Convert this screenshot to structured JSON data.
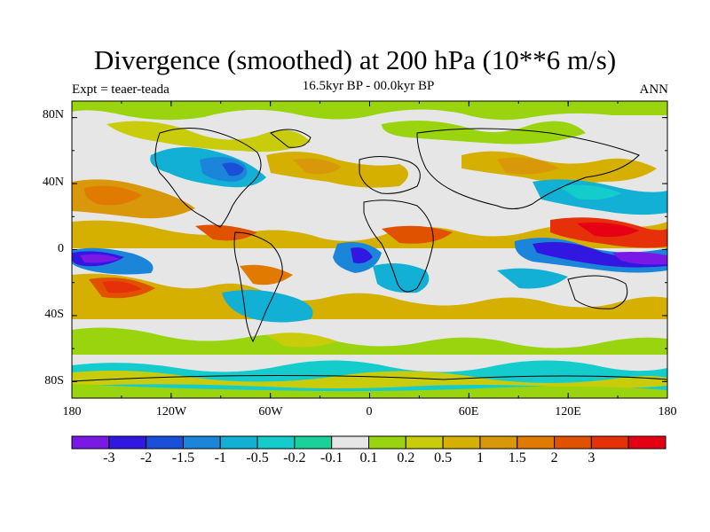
{
  "title": "Divergence (smoothed) at 200 hPa (10**6 m/s)",
  "subtitle": "16.5kyr BP - 00.0kyr BP",
  "left_label": "Expt = teaer-teada",
  "right_label": "ANN",
  "lat_ticks": [
    "80N",
    "40N",
    "0",
    "40S",
    "80S"
  ],
  "lon_ticks": [
    "180",
    "120W",
    "60W",
    "0",
    "60E",
    "120E",
    "180"
  ],
  "colorbar": {
    "colors": [
      "#7a19e6",
      "#3217e0",
      "#1a4fd9",
      "#1b86d9",
      "#12b0d4",
      "#14cccc",
      "#1ad19b",
      "#e6e6e6",
      "#9ad40f",
      "#c8cc0a",
      "#d6b000",
      "#d9970a",
      "#e07a00",
      "#e05200",
      "#e6300a",
      "#e60014"
    ],
    "labels": [
      "-3",
      "-2",
      "-1.5",
      "-1",
      "-0.5",
      "-0.2",
      "-0.1",
      "0.1",
      "0.2",
      "0.5",
      "1",
      "1.5",
      "2",
      "3"
    ]
  },
  "map_data": {
    "projection": "cylindrical-equidistant",
    "lon_range": [
      -180,
      180
    ],
    "lat_range": [
      -90,
      90
    ]
  }
}
